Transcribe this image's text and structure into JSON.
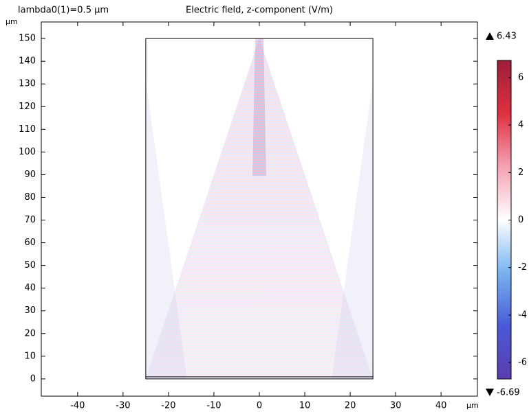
{
  "chart_data": {
    "type": "field",
    "title": "Electric field, z-component (V/m)",
    "annotation": "lambda0(1)=0.5 µm",
    "x_unit": "µm",
    "y_unit": "µm",
    "xlim": [
      -48,
      48
    ],
    "xticks": [
      -40,
      -30,
      -20,
      -10,
      0,
      10,
      20,
      30,
      40
    ],
    "ylim": [
      -7.6,
      157.3
    ],
    "yticks": [
      0,
      10,
      20,
      30,
      40,
      50,
      60,
      70,
      80,
      90,
      100,
      110,
      120,
      130,
      140,
      150
    ],
    "geometry_x": [
      -25,
      25
    ],
    "geometry_y": [
      0,
      150
    ],
    "colorbar": {
      "clim": [
        -6.69,
        6.72
      ],
      "ticks": [
        -6,
        -4,
        -2,
        0,
        2,
        4,
        6
      ],
      "max": 6.43,
      "min": -6.69,
      "colors": [
        "#5a3cae",
        "#4a5ad6",
        "#78b2f0",
        "#ffffff",
        "#f4a2b4",
        "#de3040",
        "#9c1e3a"
      ]
    }
  }
}
